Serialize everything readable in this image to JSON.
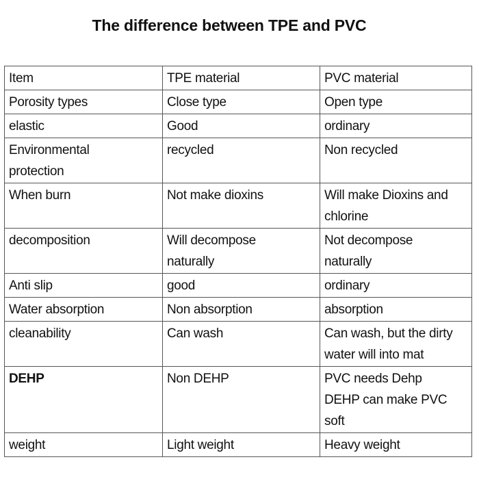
{
  "title": "The difference between TPE and PVC",
  "table": {
    "rows": [
      [
        [
          "Item"
        ],
        [
          "TPE material"
        ],
        [
          "PVC material"
        ]
      ],
      [
        [
          "Porosity types"
        ],
        [
          "Close type"
        ],
        [
          "Open type"
        ]
      ],
      [
        [
          "elastic"
        ],
        [
          "Good"
        ],
        [
          "ordinary"
        ]
      ],
      [
        [
          "Environmental",
          "protection"
        ],
        [
          "recycled"
        ],
        [
          "Non recycled"
        ]
      ],
      [
        [
          "When burn"
        ],
        [
          "Not make dioxins"
        ],
        [
          "Will make Dioxins and",
          "chlorine"
        ]
      ],
      [
        [
          "decomposition"
        ],
        [
          "Will decompose",
          "naturally"
        ],
        [
          "Not decompose",
          "naturally"
        ]
      ],
      [
        [
          "Anti slip"
        ],
        [
          "good"
        ],
        [
          "ordinary"
        ]
      ],
      [
        [
          "Water absorption"
        ],
        [
          "Non absorption"
        ],
        [
          "absorption"
        ]
      ],
      [
        [
          "cleanability"
        ],
        [
          "Can wash"
        ],
        [
          "Can wash, but the dirty",
          "water will into mat"
        ]
      ],
      [
        [
          "DEHP"
        ],
        [
          "Non DEHP"
        ],
        [
          "PVC needs Dehp",
          "DEHP can make PVC",
          "soft"
        ]
      ],
      [
        [
          "weight"
        ],
        [
          "Light weight"
        ],
        [
          "Heavy weight"
        ]
      ]
    ]
  }
}
